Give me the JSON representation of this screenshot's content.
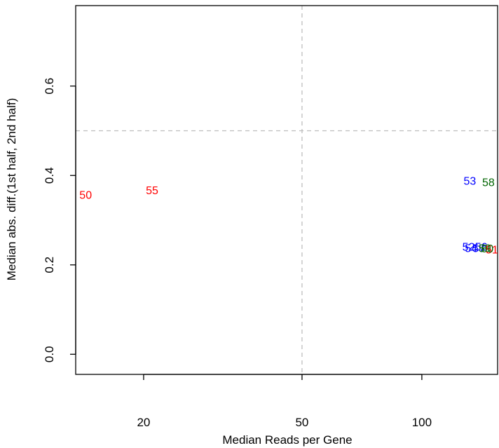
{
  "chart_data": {
    "type": "scatter",
    "title": "",
    "xlabel": "Median Reads per Gene",
    "ylabel": "Median abs. diff.(1st half, 2nd half)",
    "x_scale": "log",
    "xlim": [
      13.5,
      155
    ],
    "ylim": [
      -0.045,
      0.78
    ],
    "xticks": [
      20,
      50,
      100
    ],
    "xtick_labels": [
      "20",
      "50",
      "100"
    ],
    "yticks": [
      0.0,
      0.2,
      0.4,
      0.6
    ],
    "ytick_labels": [
      "0.0",
      "0.2",
      "0.4",
      "0.6"
    ],
    "reference_lines": {
      "vertical_x": 50,
      "horizontal_y": 0.5,
      "color": "#bebebe",
      "style": "dashed"
    },
    "points": [
      {
        "label": "50",
        "x": 14.3,
        "y": 0.355,
        "color": "#ff0000"
      },
      {
        "label": "55",
        "x": 21.0,
        "y": 0.365,
        "color": "#ff0000"
      },
      {
        "label": "53",
        "x": 132,
        "y": 0.386,
        "color": "#0000ff"
      },
      {
        "label": "58",
        "x": 147,
        "y": 0.383,
        "color": "#006400"
      },
      {
        "label": "52",
        "x": 131,
        "y": 0.239,
        "color": "#0000ff"
      },
      {
        "label": "54",
        "x": 133,
        "y": 0.236,
        "color": "#0000ff"
      },
      {
        "label": "56",
        "x": 141,
        "y": 0.239,
        "color": "#0000ff"
      },
      {
        "label": "57",
        "x": 139,
        "y": 0.236,
        "color": "#0000ff"
      },
      {
        "label": "59",
        "x": 144,
        "y": 0.236,
        "color": "#006400"
      },
      {
        "label": "51",
        "x": 150,
        "y": 0.233,
        "color": "#ff0000"
      },
      {
        "label": "60",
        "x": 146,
        "y": 0.235,
        "color": "#006400"
      }
    ]
  }
}
